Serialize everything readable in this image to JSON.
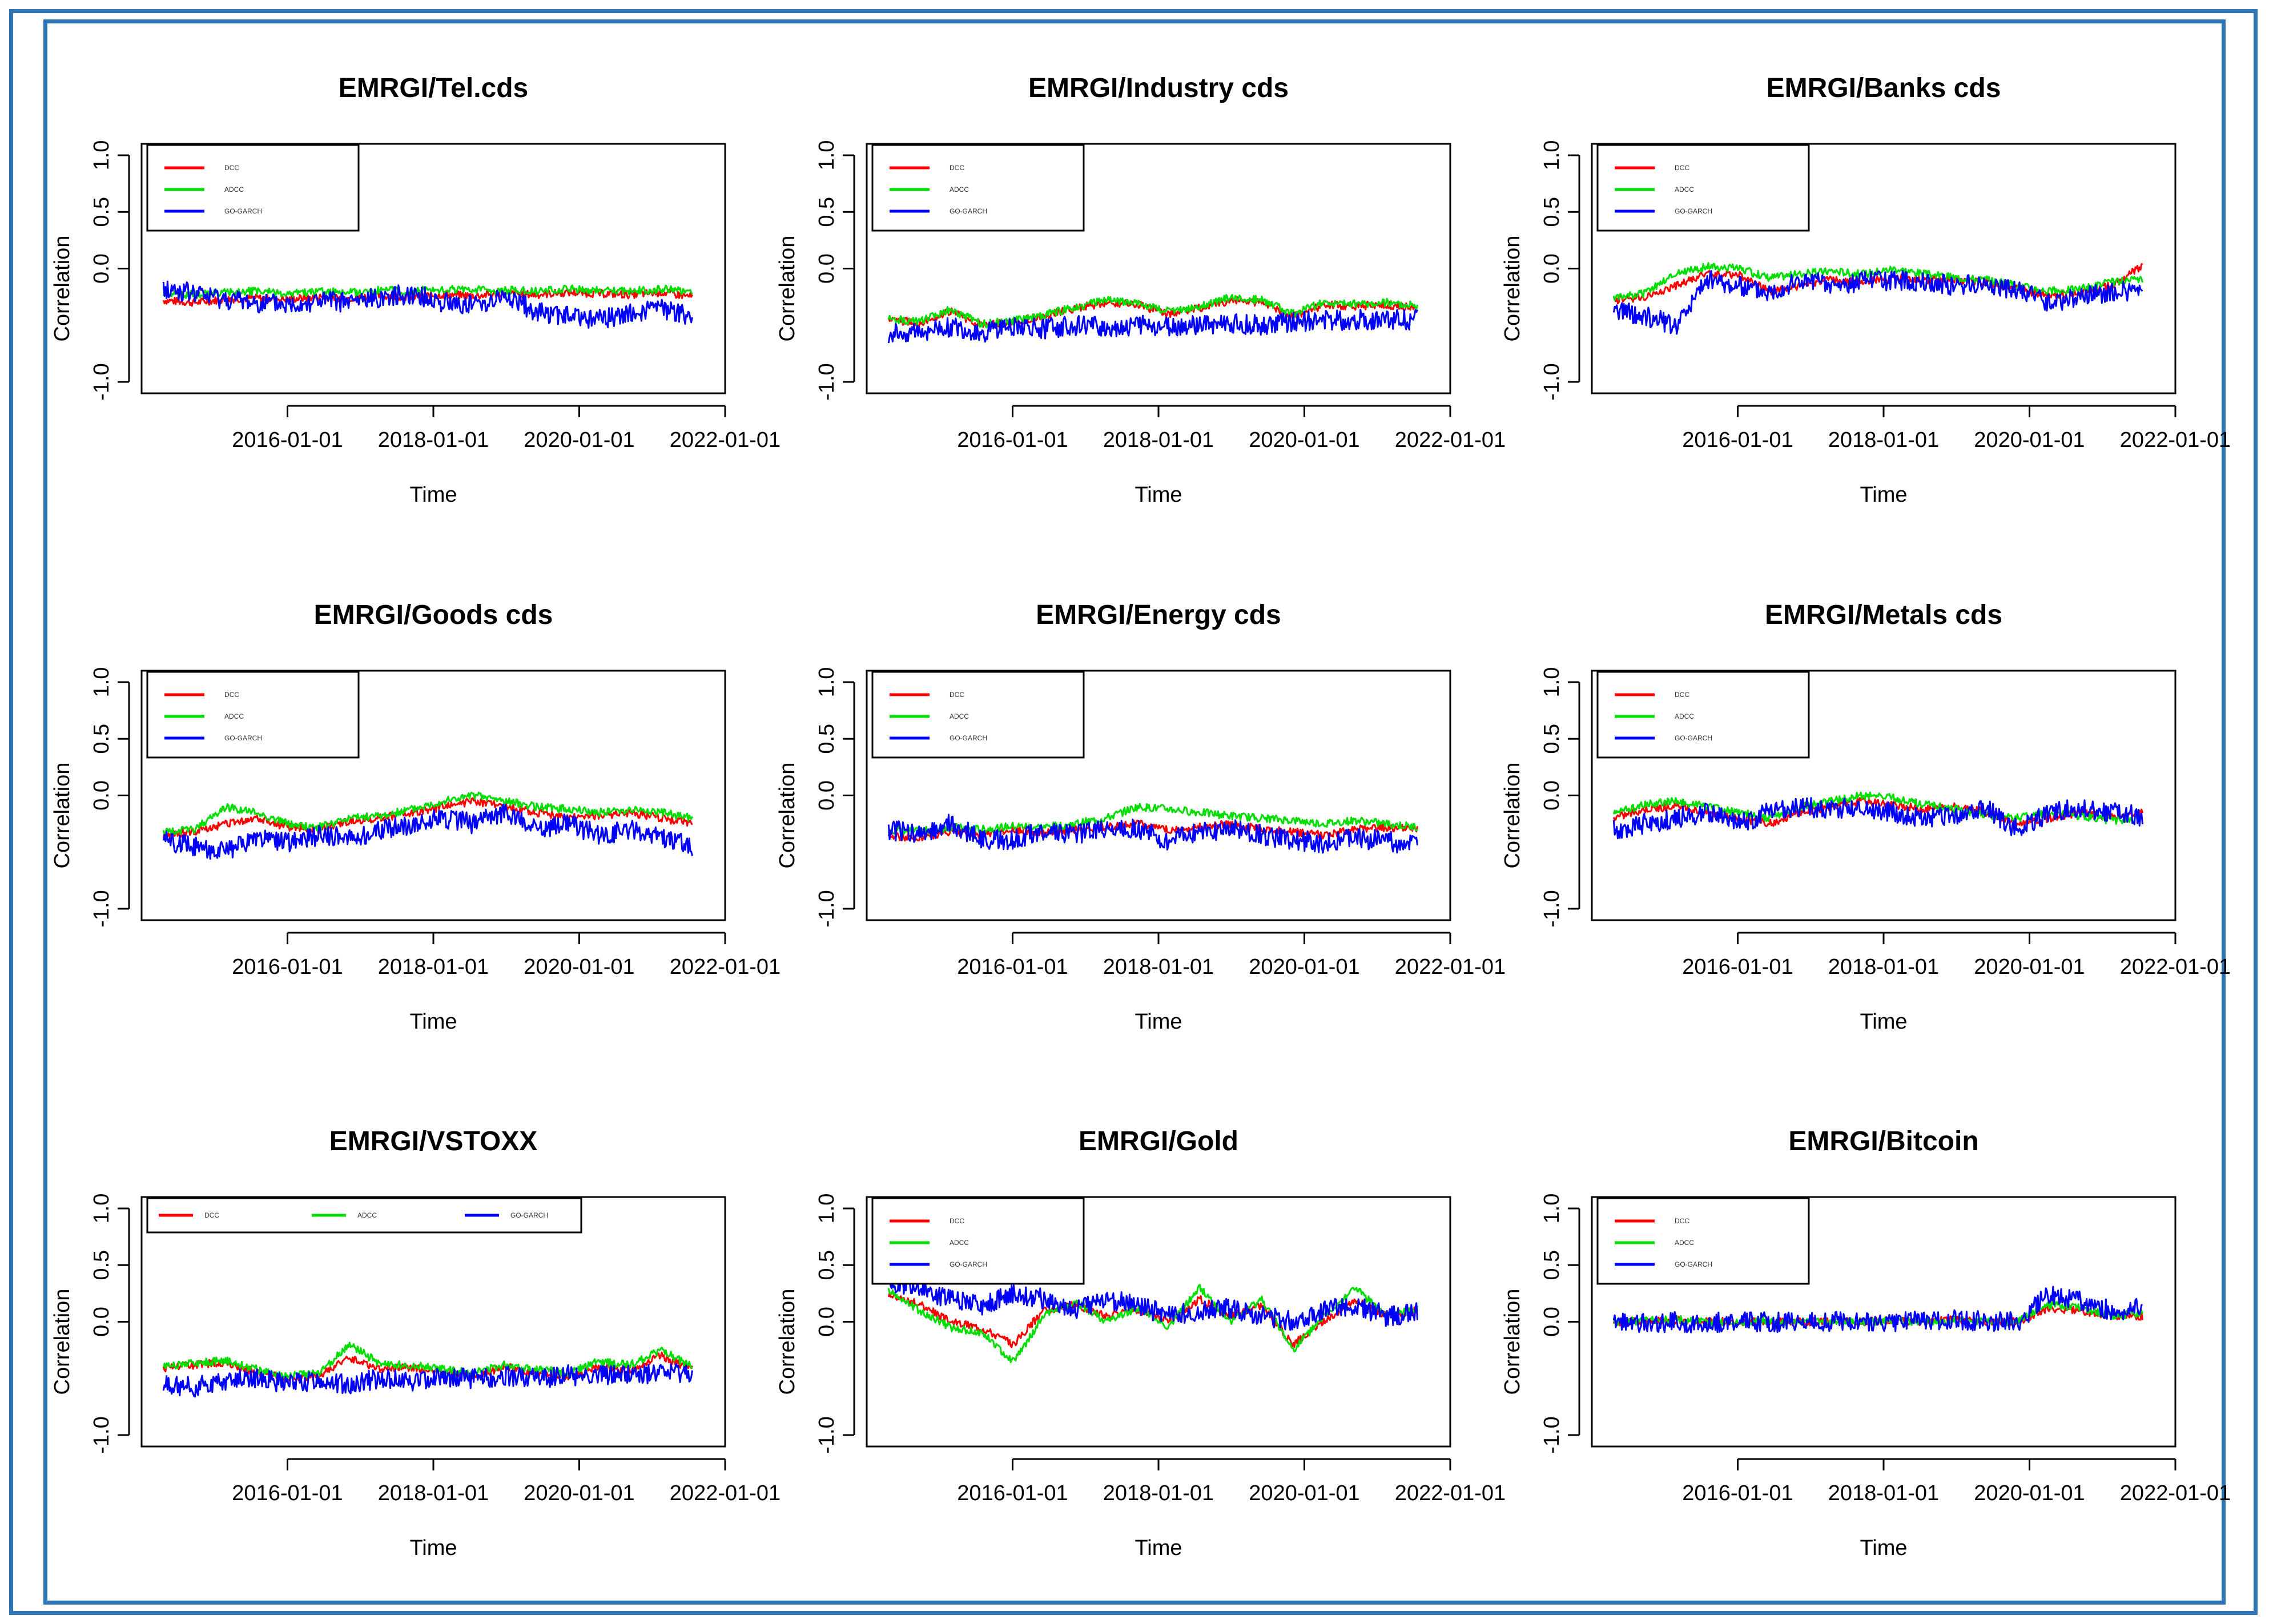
{
  "figure": {
    "colors": {
      "DCC": "#ff0000",
      "ADCC": "#00dd00",
      "GO-GARCH": "#0000ff",
      "frame": "#2e75b6"
    }
  },
  "chart_data": [
    {
      "type": "line",
      "title": "EMRGI/Tel.cds",
      "xlabel": "Time",
      "ylabel": "Correlation",
      "ylim": [
        -1,
        1
      ],
      "x_ticks": [
        "2016-01-01",
        "2018-01-01",
        "2020-01-01",
        "2022-01-01"
      ],
      "y_ticks": [
        "-1.0",
        "0.0",
        "0.5",
        "1.0"
      ],
      "legend": [
        "DCC",
        "ADCC",
        "GO-GARCH"
      ],
      "series": [
        {
          "name": "DCC",
          "values": [
            -0.28,
            -0.3,
            -0.27,
            -0.26,
            -0.27,
            -0.25,
            -0.26,
            -0.24,
            -0.25,
            -0.23,
            -0.24,
            -0.22,
            -0.23,
            -0.21,
            -0.22,
            -0.23,
            -0.21,
            -0.25
          ]
        },
        {
          "name": "ADCC",
          "values": [
            -0.22,
            -0.23,
            -0.21,
            -0.2,
            -0.22,
            -0.2,
            -0.21,
            -0.19,
            -0.2,
            -0.18,
            -0.19,
            -0.19,
            -0.2,
            -0.18,
            -0.19,
            -0.2,
            -0.18,
            -0.2
          ]
        },
        {
          "name": "GO-GARCH",
          "values": [
            -0.18,
            -0.22,
            -0.27,
            -0.3,
            -0.32,
            -0.28,
            -0.3,
            -0.25,
            -0.22,
            -0.3,
            -0.32,
            -0.25,
            -0.38,
            -0.42,
            -0.45,
            -0.4,
            -0.35,
            -0.42
          ]
        }
      ]
    },
    {
      "type": "line",
      "title": "EMRGI/Industry cds",
      "xlabel": "Time",
      "ylabel": "Correlation",
      "ylim": [
        -1,
        1
      ],
      "x_ticks": [
        "2016-01-01",
        "2018-01-01",
        "2020-01-01",
        "2022-01-01"
      ],
      "y_ticks": [
        "-1.0",
        "0.0",
        "0.5",
        "1.0"
      ],
      "legend": [
        "DCC",
        "ADCC",
        "GO-GARCH"
      ],
      "series": [
        {
          "name": "DCC",
          "values": [
            -0.45,
            -0.48,
            -0.38,
            -0.5,
            -0.47,
            -0.42,
            -0.35,
            -0.3,
            -0.32,
            -0.4,
            -0.35,
            -0.28,
            -0.3,
            -0.42,
            -0.32,
            -0.33,
            -0.32,
            -0.35
          ]
        },
        {
          "name": "ADCC",
          "values": [
            -0.44,
            -0.47,
            -0.36,
            -0.49,
            -0.46,
            -0.41,
            -0.34,
            -0.28,
            -0.3,
            -0.38,
            -0.34,
            -0.25,
            -0.28,
            -0.4,
            -0.3,
            -0.31,
            -0.3,
            -0.33
          ]
        },
        {
          "name": "GO-GARCH",
          "values": [
            -0.58,
            -0.55,
            -0.52,
            -0.57,
            -0.5,
            -0.53,
            -0.5,
            -0.52,
            -0.5,
            -0.52,
            -0.5,
            -0.48,
            -0.5,
            -0.47,
            -0.46,
            -0.45,
            -0.45,
            -0.45
          ]
        }
      ]
    },
    {
      "type": "line",
      "title": "EMRGI/Banks cds",
      "xlabel": "Time",
      "ylabel": "Correlation",
      "ylim": [
        -1,
        1
      ],
      "x_ticks": [
        "2016-01-01",
        "2018-01-01",
        "2020-01-01",
        "2022-01-01"
      ],
      "y_ticks": [
        "-1.0",
        "0.0",
        "0.5",
        "1.0"
      ],
      "legend": [
        "DCC",
        "ADCC",
        "GO-GARCH"
      ],
      "series": [
        {
          "name": "DCC",
          "values": [
            -0.28,
            -0.25,
            -0.15,
            -0.05,
            -0.05,
            -0.2,
            -0.15,
            -0.1,
            -0.12,
            -0.08,
            -0.1,
            -0.1,
            -0.12,
            -0.18,
            -0.25,
            -0.2,
            -0.15,
            0.02
          ]
        },
        {
          "name": "ADCC",
          "values": [
            -0.25,
            -0.22,
            -0.05,
            0.02,
            0.0,
            -0.08,
            -0.05,
            -0.02,
            -0.05,
            0.0,
            -0.05,
            -0.08,
            -0.1,
            -0.15,
            -0.2,
            -0.18,
            -0.12,
            -0.1
          ]
        },
        {
          "name": "GO-GARCH",
          "values": [
            -0.35,
            -0.42,
            -0.5,
            -0.1,
            -0.15,
            -0.2,
            -0.1,
            -0.15,
            -0.12,
            -0.1,
            -0.12,
            -0.15,
            -0.13,
            -0.2,
            -0.3,
            -0.25,
            -0.2,
            -0.2
          ]
        }
      ]
    },
    {
      "type": "line",
      "title": "EMRGI/Goods cds",
      "xlabel": "Time",
      "ylabel": "Correlation",
      "ylim": [
        -1,
        1
      ],
      "x_ticks": [
        "2016-01-01",
        "2018-01-01",
        "2020-01-01",
        "2022-01-01"
      ],
      "y_ticks": [
        "-1.0",
        "0.0",
        "0.5",
        "1.0"
      ],
      "legend": [
        "DCC",
        "ADCC",
        "GO-GARCH"
      ],
      "series": [
        {
          "name": "DCC",
          "values": [
            -0.35,
            -0.32,
            -0.25,
            -0.2,
            -0.28,
            -0.3,
            -0.22,
            -0.2,
            -0.15,
            -0.1,
            -0.05,
            -0.1,
            -0.15,
            -0.2,
            -0.18,
            -0.15,
            -0.2,
            -0.25
          ]
        },
        {
          "name": "ADCC",
          "values": [
            -0.33,
            -0.3,
            -0.1,
            -0.15,
            -0.25,
            -0.28,
            -0.2,
            -0.18,
            -0.12,
            -0.05,
            0.0,
            -0.05,
            -0.1,
            -0.12,
            -0.15,
            -0.12,
            -0.15,
            -0.2
          ]
        },
        {
          "name": "GO-GARCH",
          "values": [
            -0.4,
            -0.45,
            -0.5,
            -0.38,
            -0.42,
            -0.35,
            -0.38,
            -0.3,
            -0.25,
            -0.2,
            -0.25,
            -0.15,
            -0.3,
            -0.25,
            -0.35,
            -0.3,
            -0.38,
            -0.45
          ]
        }
      ]
    },
    {
      "type": "line",
      "title": "EMRGI/Energy cds",
      "xlabel": "Time",
      "ylabel": "Correlation",
      "ylim": [
        -1,
        1
      ],
      "x_ticks": [
        "2016-01-01",
        "2018-01-01",
        "2020-01-01",
        "2022-01-01"
      ],
      "y_ticks": [
        "-1.0",
        "0.0",
        "0.5",
        "1.0"
      ],
      "legend": [
        "DCC",
        "ADCC",
        "GO-GARCH"
      ],
      "series": [
        {
          "name": "DCC",
          "values": [
            -0.35,
            -0.38,
            -0.32,
            -0.35,
            -0.3,
            -0.33,
            -0.3,
            -0.28,
            -0.25,
            -0.3,
            -0.28,
            -0.25,
            -0.3,
            -0.32,
            -0.35,
            -0.3,
            -0.28,
            -0.3
          ]
        },
        {
          "name": "ADCC",
          "values": [
            -0.3,
            -0.32,
            -0.28,
            -0.3,
            -0.27,
            -0.28,
            -0.25,
            -0.2,
            -0.1,
            -0.12,
            -0.15,
            -0.18,
            -0.2,
            -0.22,
            -0.25,
            -0.22,
            -0.25,
            -0.28
          ]
        },
        {
          "name": "GO-GARCH",
          "values": [
            -0.3,
            -0.35,
            -0.25,
            -0.38,
            -0.4,
            -0.3,
            -0.35,
            -0.28,
            -0.3,
            -0.4,
            -0.32,
            -0.3,
            -0.35,
            -0.4,
            -0.42,
            -0.38,
            -0.4,
            -0.45
          ]
        }
      ]
    },
    {
      "type": "line",
      "title": "EMRGI/Metals cds",
      "xlabel": "Time",
      "ylabel": "Correlation",
      "ylim": [
        -1,
        1
      ],
      "x_ticks": [
        "2016-01-01",
        "2018-01-01",
        "2020-01-01",
        "2022-01-01"
      ],
      "y_ticks": [
        "-1.0",
        "0.0",
        "0.5",
        "1.0"
      ],
      "legend": [
        "DCC",
        "ADCC",
        "GO-GARCH"
      ],
      "series": [
        {
          "name": "DCC",
          "values": [
            -0.2,
            -0.12,
            -0.1,
            -0.15,
            -0.2,
            -0.25,
            -0.15,
            -0.1,
            -0.05,
            -0.08,
            -0.12,
            -0.1,
            -0.15,
            -0.25,
            -0.2,
            -0.15,
            -0.2,
            -0.15
          ]
        },
        {
          "name": "ADCC",
          "values": [
            -0.15,
            -0.08,
            -0.05,
            -0.1,
            -0.15,
            -0.2,
            -0.1,
            -0.05,
            0.0,
            -0.02,
            -0.08,
            -0.12,
            -0.18,
            -0.2,
            -0.15,
            -0.18,
            -0.22,
            -0.2
          ]
        },
        {
          "name": "GO-GARCH",
          "values": [
            -0.3,
            -0.25,
            -0.2,
            -0.15,
            -0.25,
            -0.15,
            -0.1,
            -0.12,
            -0.1,
            -0.15,
            -0.2,
            -0.18,
            -0.12,
            -0.3,
            -0.15,
            -0.1,
            -0.15,
            -0.18
          ]
        }
      ]
    },
    {
      "type": "line",
      "title": "EMRGI/VSTOXX",
      "xlabel": "Time",
      "ylabel": "Correlation",
      "ylim": [
        -1,
        1
      ],
      "x_ticks": [
        "2016-01-01",
        "2018-01-01",
        "2020-01-01",
        "2022-01-01"
      ],
      "y_ticks": [
        "-1.0",
        "0.0",
        "0.5",
        "1.0"
      ],
      "legend": [
        "DCC",
        "ADCC",
        "GO-GARCH"
      ],
      "series": [
        {
          "name": "DCC",
          "values": [
            -0.42,
            -0.38,
            -0.36,
            -0.45,
            -0.5,
            -0.48,
            -0.32,
            -0.42,
            -0.4,
            -0.45,
            -0.48,
            -0.4,
            -0.45,
            -0.48,
            -0.4,
            -0.42,
            -0.3,
            -0.42
          ]
        },
        {
          "name": "ADCC",
          "values": [
            -0.4,
            -0.36,
            -0.34,
            -0.42,
            -0.48,
            -0.45,
            -0.2,
            -0.38,
            -0.38,
            -0.42,
            -0.45,
            -0.38,
            -0.42,
            -0.45,
            -0.35,
            -0.38,
            -0.25,
            -0.4
          ]
        },
        {
          "name": "GO-GARCH",
          "values": [
            -0.55,
            -0.58,
            -0.52,
            -0.5,
            -0.55,
            -0.52,
            -0.55,
            -0.5,
            -0.52,
            -0.48,
            -0.5,
            -0.48,
            -0.5,
            -0.47,
            -0.48,
            -0.47,
            -0.46,
            -0.45
          ]
        }
      ]
    },
    {
      "type": "line",
      "title": "EMRGI/Gold",
      "xlabel": "Time",
      "ylabel": "Correlation",
      "ylim": [
        -1,
        1
      ],
      "x_ticks": [
        "2016-01-01",
        "2018-01-01",
        "2020-01-01",
        "2022-01-01"
      ],
      "y_ticks": [
        "-1.0",
        "0.0",
        "0.5",
        "1.0"
      ],
      "legend": [
        "DCC",
        "ADCC",
        "GO-GARCH"
      ],
      "series": [
        {
          "name": "DCC",
          "values": [
            0.25,
            0.15,
            0.0,
            -0.05,
            -0.2,
            0.1,
            0.15,
            0.05,
            0.1,
            0.0,
            0.2,
            0.05,
            0.15,
            -0.2,
            0.0,
            0.2,
            0.05,
            0.1
          ]
        },
        {
          "name": "ADCC",
          "values": [
            0.28,
            0.1,
            -0.05,
            -0.1,
            -0.35,
            0.05,
            0.18,
            0.0,
            0.12,
            -0.05,
            0.3,
            0.0,
            0.2,
            -0.25,
            0.05,
            0.3,
            0.05,
            0.12
          ]
        },
        {
          "name": "GO-GARCH",
          "values": [
            0.35,
            0.3,
            0.2,
            0.15,
            0.25,
            0.2,
            0.1,
            0.2,
            0.15,
            0.05,
            0.1,
            0.12,
            0.05,
            0.0,
            0.1,
            0.15,
            0.05,
            0.08
          ]
        }
      ]
    },
    {
      "type": "line",
      "title": "EMRGI/Bitcoin",
      "xlabel": "Time",
      "ylabel": "Correlation",
      "ylim": [
        -1,
        1
      ],
      "x_ticks": [
        "2016-01-01",
        "2018-01-01",
        "2020-01-01",
        "2022-01-01"
      ],
      "y_ticks": [
        "-1.0",
        "0.0",
        "0.5",
        "1.0"
      ],
      "legend": [
        "DCC",
        "ADCC",
        "GO-GARCH"
      ],
      "series": [
        {
          "name": "DCC",
          "values": [
            0.0,
            0.0,
            0.01,
            0.0,
            0.0,
            0.0,
            0.0,
            0.0,
            0.0,
            0.01,
            0.0,
            0.02,
            0.0,
            0.0,
            0.12,
            0.1,
            0.05,
            0.05
          ]
        },
        {
          "name": "ADCC",
          "values": [
            0.0,
            0.01,
            0.02,
            0.0,
            0.0,
            0.01,
            0.0,
            0.0,
            0.0,
            0.01,
            0.0,
            0.02,
            0.0,
            0.0,
            0.15,
            0.12,
            0.05,
            0.08
          ]
        },
        {
          "name": "GO-GARCH",
          "values": [
            -0.01,
            -0.02,
            0.0,
            -0.01,
            0.0,
            0.0,
            -0.01,
            0.0,
            0.0,
            0.0,
            0.01,
            0.02,
            0.0,
            0.0,
            0.25,
            0.18,
            0.1,
            0.12
          ]
        }
      ]
    }
  ]
}
